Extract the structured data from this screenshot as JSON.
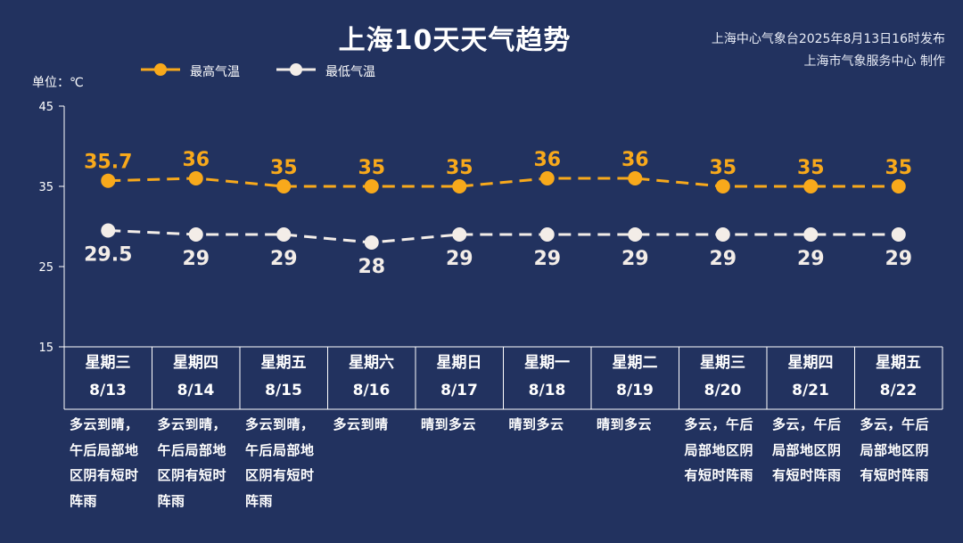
{
  "title": "上海10天天气趋势",
  "source_line1": "上海中心气象台2025年8月13日16时发布",
  "source_line2": "上海市气象服务中心 制作",
  "chart_data": {
    "type": "line",
    "ylabel": "单位：℃",
    "ylim": [
      15,
      45
    ],
    "yticks": [
      15,
      25,
      35,
      45
    ],
    "series": [
      {
        "name": "最高气温",
        "color": "#f8a91b",
        "values": [
          35.7,
          36,
          35,
          35,
          35,
          36,
          36,
          35,
          35,
          35
        ]
      },
      {
        "name": "最低气温",
        "color": "#f3ede8",
        "values": [
          29.5,
          29,
          29,
          28,
          29,
          29,
          29,
          29,
          29,
          29
        ]
      }
    ],
    "days": [
      {
        "week": "星期三",
        "date": "8/13",
        "desc": "多云到晴，午后局部地区阴有短时阵雨"
      },
      {
        "week": "星期四",
        "date": "8/14",
        "desc": "多云到晴，午后局部地区阴有短时阵雨"
      },
      {
        "week": "星期五",
        "date": "8/15",
        "desc": "多云到晴，午后局部地区阴有短时阵雨"
      },
      {
        "week": "星期六",
        "date": "8/16",
        "desc": "多云到晴"
      },
      {
        "week": "星期日",
        "date": "8/17",
        "desc": "晴到多云"
      },
      {
        "week": "星期一",
        "date": "8/18",
        "desc": "晴到多云"
      },
      {
        "week": "星期二",
        "date": "8/19",
        "desc": "晴到多云"
      },
      {
        "week": "星期三",
        "date": "8/20",
        "desc": "多云，午后局部地区阴有短时阵雨"
      },
      {
        "week": "星期四",
        "date": "8/21",
        "desc": "多云，午后局部地区阴有短时阵雨"
      },
      {
        "week": "星期五",
        "date": "8/22",
        "desc": "多云，午后局部地区阴有短时阵雨"
      }
    ]
  }
}
